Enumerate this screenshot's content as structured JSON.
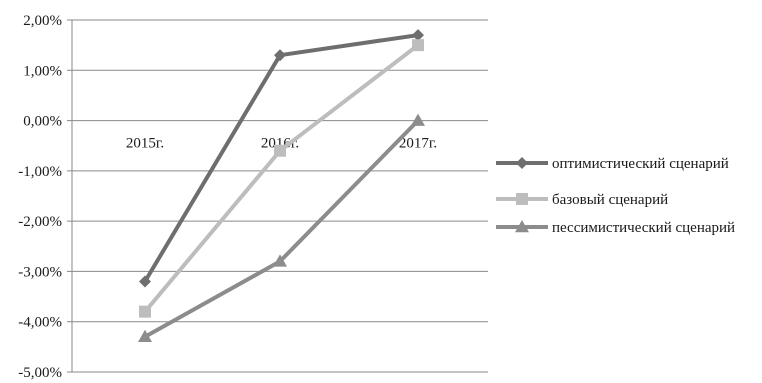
{
  "chart_data": {
    "type": "line",
    "categories": [
      "2015г.",
      "2016г.",
      "2017г."
    ],
    "series": [
      {
        "name": "оптимистический сценарий",
        "values": [
          -3.2,
          1.3,
          1.7
        ],
        "color": "#6e6e6e",
        "marker": "diamond"
      },
      {
        "name": "базовый сценарий",
        "values": [
          -3.8,
          -0.6,
          1.5
        ],
        "color": "#bdbdbd",
        "marker": "square"
      },
      {
        "name": "пессимистический сценарий",
        "values": [
          -4.3,
          -2.8,
          0.0
        ],
        "color": "#8c8c8c",
        "marker": "triangle"
      }
    ],
    "ylim": [
      -5,
      2
    ],
    "yticks": [
      2,
      1,
      0,
      -1,
      -2,
      -3,
      -4,
      -5
    ],
    "ytick_labels": [
      "2,00%",
      "1,00%",
      "0,00%",
      "-1,00%",
      "-2,00%",
      "-3,00%",
      "-4,00%",
      "-5,00%"
    ],
    "grid": true,
    "legend_position": "right"
  }
}
